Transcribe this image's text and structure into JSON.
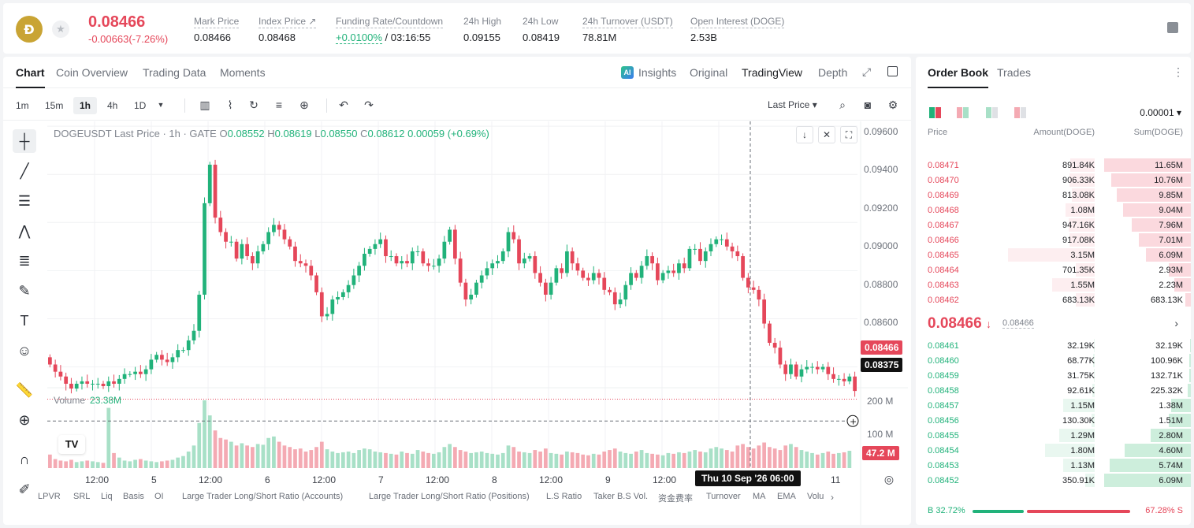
{
  "ticker": {
    "coin_logo": "Ð",
    "last_price": "0.08466",
    "change": "-0.00663(-7.26%)",
    "stats": [
      {
        "label": "Mark Price",
        "value": "0.08466"
      },
      {
        "label": "Index Price ↗",
        "value": "0.08468"
      },
      {
        "label": "Funding Rate/Countdown",
        "value_green": "+0.0100%",
        "value": " / 03:16:55"
      },
      {
        "label": "24h High",
        "value": "0.09155"
      },
      {
        "label": "24h Low",
        "value": "0.08419"
      },
      {
        "label": "24h Turnover (USDT)",
        "value": "78.81M"
      },
      {
        "label": "Open Interest (DOGE)",
        "value": "2.53B"
      }
    ]
  },
  "chart_tabs": {
    "tabs": [
      "Chart",
      "Coin Overview",
      "Trading Data",
      "Moments"
    ],
    "views": [
      "Insights",
      "Original",
      "TradingView",
      "Depth"
    ]
  },
  "toolbar": {
    "intervals": [
      "1m",
      "15m",
      "1h",
      "4h",
      "1D"
    ],
    "last_price_select": "Last Price"
  },
  "chart_data": {
    "type": "candlestick",
    "title": "DOGEUSDT Last Price · 1h · GATE",
    "ohlc": {
      "o": "0.08552",
      "h": "0.08619",
      "l": "0.08550",
      "c": "0.08612",
      "chg": "0.00059 (+0.69%)"
    },
    "volume_label": "Volume",
    "volume_value": "23.38M",
    "y_ticks": [
      "0.09600",
      "0.09400",
      "0.09200",
      "0.09000",
      "0.08800",
      "0.08600"
    ],
    "y_range": [
      0.0852,
      0.0962
    ],
    "vol_ticks": [
      "200 M",
      "100 M"
    ],
    "x_ticks": [
      "12:00",
      "5",
      "12:00",
      "6",
      "12:00",
      "7",
      "12:00",
      "8",
      "12:00",
      "9",
      "12:00",
      "11"
    ],
    "current_price": "0.08466",
    "cursor_price": "0.08375",
    "cursor_time": "Thu 10 Sep '26   06:00",
    "current_volume": "47.2 M",
    "up_color": "#21b27a",
    "down_color": "#e5475a",
    "closes": [
      0.0861,
      0.0858,
      0.0856,
      0.0853,
      0.0851,
      0.0853,
      0.0854,
      0.0853,
      0.0853,
      0.0853,
      0.0852,
      0.0854,
      0.0853,
      0.0855,
      0.0857,
      0.0857,
      0.0858,
      0.0857,
      0.0859,
      0.0863,
      0.0865,
      0.0863,
      0.0862,
      0.0864,
      0.0867,
      0.0867,
      0.0871,
      0.0875,
      0.089,
      0.0928,
      0.0944,
      0.0922,
      0.0916,
      0.0912,
      0.0912,
      0.0905,
      0.0911,
      0.0906,
      0.0903,
      0.0908,
      0.0911,
      0.0916,
      0.0919,
      0.0917,
      0.0913,
      0.091,
      0.0904,
      0.0903,
      0.0902,
      0.0898,
      0.0891,
      0.0881,
      0.0882,
      0.0888,
      0.0889,
      0.0891,
      0.0894,
      0.0898,
      0.0902,
      0.0907,
      0.0909,
      0.0911,
      0.0913,
      0.0906,
      0.0906,
      0.0903,
      0.0904,
      0.0903,
      0.0908,
      0.0908,
      0.0903,
      0.0902,
      0.0902,
      0.0905,
      0.0912,
      0.0917,
      0.0905,
      0.0895,
      0.0888,
      0.089,
      0.0895,
      0.0898,
      0.0901,
      0.0903,
      0.0904,
      0.0908,
      0.0916,
      0.0913,
      0.0903,
      0.0905,
      0.0906,
      0.0899,
      0.0895,
      0.089,
      0.0895,
      0.0901,
      0.0899,
      0.0908,
      0.0903,
      0.09,
      0.0897,
      0.0896,
      0.0899,
      0.0897,
      0.0892,
      0.0891,
      0.0886,
      0.0888,
      0.0894,
      0.0899,
      0.0897,
      0.0902,
      0.0906,
      0.0903,
      0.0896,
      0.0899,
      0.09,
      0.0899,
      0.0903,
      0.0901,
      0.0909,
      0.0909,
      0.0904,
      0.0908,
      0.0911,
      0.0913,
      0.0913,
      0.091,
      0.0908,
      0.0906,
      0.0897,
      0.0893,
      0.0892,
      0.0888,
      0.0878,
      0.087,
      0.0868,
      0.0861,
      0.0857,
      0.0861,
      0.0856,
      0.0859,
      0.086,
      0.086,
      0.0859,
      0.086,
      0.0857,
      0.0855,
      0.0855,
      0.0854,
      0.0856,
      0.085
    ],
    "volumes": [
      18,
      12,
      10,
      9,
      11,
      8,
      9,
      10,
      9,
      8,
      7,
      80,
      20,
      14,
      10,
      9,
      11,
      12,
      10,
      9,
      8,
      9,
      10,
      11,
      14,
      16,
      22,
      30,
      60,
      90,
      70,
      50,
      40,
      38,
      35,
      30,
      33,
      30,
      28,
      32,
      31,
      40,
      42,
      35,
      30,
      28,
      25,
      26,
      22,
      24,
      28,
      35,
      25,
      22,
      20,
      21,
      22,
      20,
      24,
      26,
      25,
      22,
      21,
      20,
      19,
      18,
      22,
      20,
      19,
      24,
      22,
      20,
      19,
      21,
      28,
      32,
      28,
      24,
      22,
      20,
      21,
      22,
      20,
      19,
      18,
      20,
      30,
      28,
      22,
      21,
      20,
      24,
      22,
      26,
      20,
      19,
      18,
      22,
      21,
      20,
      18,
      17,
      19,
      18,
      22,
      24,
      26,
      22,
      20,
      19,
      22,
      24,
      20,
      19,
      18,
      17,
      20,
      19,
      21,
      20,
      22,
      24,
      22,
      21,
      26,
      28,
      26,
      24,
      22,
      30,
      32,
      28,
      26,
      30,
      34,
      28,
      26,
      24,
      30,
      32,
      28,
      24,
      22,
      20,
      18,
      20,
      22,
      19,
      20,
      21,
      23
    ]
  },
  "indicators": [
    "LPVR",
    "SRL",
    "Liq",
    "Basis",
    "OI",
    "Large Trader Long/Short Ratio (Accounts)",
    "Large Trader Long/Short Ratio (Positions)",
    "L.S Ratio",
    "Taker B.S Vol.",
    "资金费率",
    "Turnover",
    "MA",
    "EMA",
    "Volu"
  ],
  "order_book": {
    "tabs": [
      "Order Book",
      "Trades"
    ],
    "tick_size": "0.00001",
    "headers": {
      "price": "Price",
      "amount": "Amount(DOGE)",
      "sum": "Sum(DOGE)"
    },
    "asks": [
      {
        "price": "0.08471",
        "amount": "891.84K",
        "sum": "11.65M",
        "amt_frac": 0.28,
        "sum_frac": 1.0
      },
      {
        "price": "0.08470",
        "amount": "906.33K",
        "sum": "10.76M",
        "amt_frac": 0.29,
        "sum_frac": 0.92
      },
      {
        "price": "0.08469",
        "amount": "813.08K",
        "sum": "9.85M",
        "amt_frac": 0.26,
        "sum_frac": 0.85
      },
      {
        "price": "0.08468",
        "amount": "1.08M",
        "sum": "9.04M",
        "amt_frac": 0.34,
        "sum_frac": 0.78
      },
      {
        "price": "0.08467",
        "amount": "947.16K",
        "sum": "7.96M",
        "amt_frac": 0.3,
        "sum_frac": 0.68
      },
      {
        "price": "0.08466",
        "amount": "917.08K",
        "sum": "7.01M",
        "amt_frac": 0.29,
        "sum_frac": 0.6
      },
      {
        "price": "0.08465",
        "amount": "3.15M",
        "sum": "6.09M",
        "amt_frac": 1.0,
        "sum_frac": 0.52
      },
      {
        "price": "0.08464",
        "amount": "701.35K",
        "sum": "2.93M",
        "amt_frac": 0.22,
        "sum_frac": 0.25
      },
      {
        "price": "0.08463",
        "amount": "1.55M",
        "sum": "2.23M",
        "amt_frac": 0.49,
        "sum_frac": 0.19
      },
      {
        "price": "0.08462",
        "amount": "683.13K",
        "sum": "683.13K",
        "amt_frac": 0.22,
        "sum_frac": 0.06
      }
    ],
    "mid_price": "0.08466",
    "mid_arrow": "↓",
    "mark_price": "0.08466",
    "bids": [
      {
        "price": "0.08461",
        "amount": "32.19K",
        "sum": "32.19K",
        "amt_frac": 0.01,
        "sum_frac": 0.005
      },
      {
        "price": "0.08460",
        "amount": "68.77K",
        "sum": "100.96K",
        "amt_frac": 0.02,
        "sum_frac": 0.017
      },
      {
        "price": "0.08459",
        "amount": "31.75K",
        "sum": "132.71K",
        "amt_frac": 0.01,
        "sum_frac": 0.022
      },
      {
        "price": "0.08458",
        "amount": "92.61K",
        "sum": "225.32K",
        "amt_frac": 0.03,
        "sum_frac": 0.037
      },
      {
        "price": "0.08457",
        "amount": "1.15M",
        "sum": "1.38M",
        "amt_frac": 0.36,
        "sum_frac": 0.23
      },
      {
        "price": "0.08456",
        "amount": "130.30K",
        "sum": "1.51M",
        "amt_frac": 0.04,
        "sum_frac": 0.25
      },
      {
        "price": "0.08455",
        "amount": "1.29M",
        "sum": "2.80M",
        "amt_frac": 0.41,
        "sum_frac": 0.46
      },
      {
        "price": "0.08454",
        "amount": "1.80M",
        "sum": "4.60M",
        "amt_frac": 0.57,
        "sum_frac": 0.76
      },
      {
        "price": "0.08453",
        "amount": "1.13M",
        "sum": "5.74M",
        "amt_frac": 0.36,
        "sum_frac": 0.94
      },
      {
        "price": "0.08452",
        "amount": "350.91K",
        "sum": "6.09M",
        "amt_frac": 0.11,
        "sum_frac": 1.0
      }
    ],
    "buy_ratio": "B 32.72%",
    "sell_ratio": "67.28% S",
    "buy_pct": 32.72
  }
}
